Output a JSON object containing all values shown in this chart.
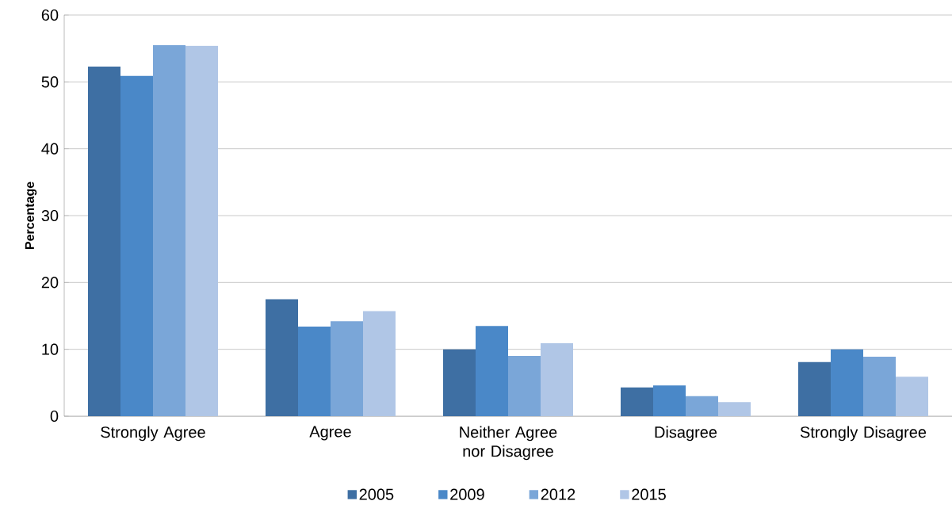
{
  "chart_data": {
    "type": "bar",
    "ylabel": "Percentage",
    "categories": [
      "Strongly Agree",
      "Agree",
      "Neither Agree nor Disagree",
      "Disagree",
      "Strongly Disagree"
    ],
    "series": [
      {
        "name": "2005",
        "color": "#3e6fa3",
        "values": [
          52.3,
          17.5,
          10.0,
          4.3,
          8.1
        ]
      },
      {
        "name": "2009",
        "color": "#4a88c8",
        "values": [
          50.9,
          13.4,
          13.5,
          4.6,
          10.0
        ]
      },
      {
        "name": "2012",
        "color": "#7aa6d8",
        "values": [
          55.5,
          14.2,
          9.0,
          3.0,
          8.9
        ]
      },
      {
        "name": "2015",
        "color": "#b0c6e6",
        "values": [
          55.4,
          15.7,
          10.9,
          2.1,
          5.9
        ]
      }
    ],
    "ylim": [
      0,
      60
    ],
    "yticks": [
      0,
      10,
      20,
      30,
      40,
      50,
      60
    ],
    "grid": "y",
    "legend": "bottom"
  }
}
